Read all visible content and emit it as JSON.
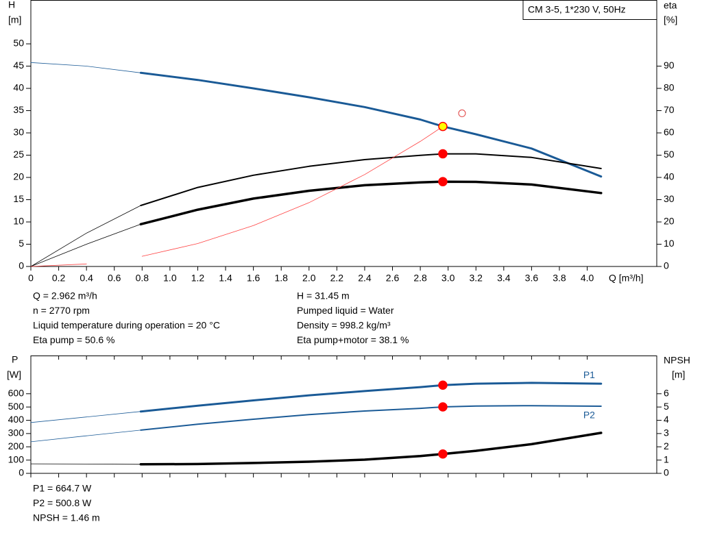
{
  "chart_data": [
    {
      "type": "line",
      "title": "CM 3-5, 1*230 V, 50Hz",
      "x_label": "Q [m³/h]",
      "y_label": "H",
      "y_unit": "[m]",
      "y2_label": "eta",
      "y2_unit": "[%]",
      "xlim": [
        0,
        4.5
      ],
      "xticks": [
        0,
        0.2,
        0.4,
        0.6,
        0.8,
        {
          "value": 1,
          "label": "1.0"
        },
        1.2,
        1.4,
        1.6,
        1.8,
        {
          "value": 2,
          "label": "2.0"
        },
        2.2,
        2.4,
        2.6,
        2.8,
        {
          "value": 3,
          "label": "3.0"
        },
        3.2,
        3.4,
        3.6,
        3.8,
        {
          "value": 4,
          "label": "4.0"
        }
      ],
      "ylim": [
        0,
        59.85
      ],
      "yticks": [
        0,
        5,
        10,
        15,
        20,
        25,
        30,
        35,
        40,
        45,
        50
      ],
      "y2lim": [
        0,
        119.7
      ],
      "y2ticks": [
        0,
        10,
        20,
        30,
        40,
        50,
        60,
        70,
        80,
        90
      ],
      "thick_from": 0.79,
      "series": [
        {
          "color": "#1a5a96",
          "width": 3,
          "x": [
            0,
            0.4,
            0.79,
            1.2,
            1.6,
            2.0,
            2.4,
            2.8,
            2.962,
            3.2,
            3.6,
            4.1
          ],
          "values": [
            45.8,
            45.0,
            43.5,
            41.9,
            40.0,
            38.0,
            35.8,
            33.0,
            31.45,
            29.7,
            26.5,
            20.2
          ]
        },
        {
          "color": "#000000",
          "width": 2,
          "axis": "y2",
          "x": [
            0,
            0.4,
            0.79,
            1.2,
            1.6,
            2.0,
            2.4,
            2.8,
            2.962,
            3.2,
            3.6,
            4.1
          ],
          "values": [
            0,
            15,
            27.4,
            35.5,
            41,
            45,
            48,
            49.9,
            50.6,
            50.6,
            49,
            44
          ]
        },
        {
          "color": "#000000",
          "width": 3.5,
          "axis": "y2",
          "x": [
            0,
            0.4,
            0.79,
            1.2,
            1.6,
            2.0,
            2.4,
            2.8,
            2.962,
            3.2,
            3.6,
            4.1
          ],
          "values": [
            0,
            10,
            19,
            25.5,
            30.5,
            34,
            36.5,
            37.8,
            38.1,
            38,
            36.8,
            33
          ]
        },
        {
          "color": "#ff4040",
          "width": 0.8,
          "x": [
            0,
            0.4,
            0.8,
            1.2,
            1.6,
            2.0,
            2.4,
            2.8,
            2.962
          ],
          "values": [
            0,
            0.57,
            2.29,
            5.16,
            9.18,
            14.34,
            20.65,
            28.1,
            31.45
          ]
        }
      ],
      "points": [
        {
          "x": 2.962,
          "y": 50.6,
          "axis": "y2",
          "color": "#ff0000"
        },
        {
          "x": 2.962,
          "y": 38.1,
          "axis": "y2",
          "color": "#ff0000"
        },
        {
          "x": 2.962,
          "y": 31.45,
          "color": "#ffff00"
        }
      ],
      "markers": [
        {
          "x": 3.1,
          "y": 34.4,
          "color": "#e04040"
        }
      ],
      "readout": [
        [
          "Q = 2.962 m³/h",
          "n = 2770 rpm",
          "Liquid temperature during operation = 20 °C",
          "Eta pump = 50.6 %"
        ],
        [
          "H = 31.45 m",
          "Pumped liquid = Water",
          "Density = 998.2 kg/m³",
          "Eta pump+motor = 38.1 %"
        ]
      ]
    },
    {
      "type": "line",
      "y_label": "P",
      "y_unit": "[W]",
      "y2_label": "NPSH",
      "y2_unit": "[m]",
      "xlim": [
        0,
        4.5
      ],
      "ylim": [
        0,
        888
      ],
      "yticks": [
        0,
        100,
        200,
        300,
        400,
        500,
        600
      ],
      "y2lim": [
        0,
        8.88
      ],
      "y2ticks": [
        0,
        1,
        2,
        3,
        4,
        5,
        6
      ],
      "thick_from": 0.79,
      "series": [
        {
          "name": "P1",
          "color": "#1a5a96",
          "width": 3,
          "x": [
            0,
            0.4,
            0.79,
            1.2,
            1.6,
            2.0,
            2.4,
            2.8,
            2.962,
            3.2,
            3.6,
            4.1
          ],
          "values": [
            383,
            425,
            466,
            510,
            550,
            588,
            620,
            650,
            664.7,
            676,
            682,
            676
          ]
        },
        {
          "name": "P2",
          "color": "#1a5a96",
          "width": 2,
          "x": [
            0,
            0.4,
            0.79,
            1.2,
            1.6,
            2.0,
            2.4,
            2.8,
            2.962,
            3.2,
            3.6,
            4.1
          ],
          "values": [
            238,
            283,
            326,
            370,
            408,
            443,
            470,
            490,
            500.8,
            507,
            510,
            506
          ]
        },
        {
          "color": "#000000",
          "width": 3.5,
          "axis": "y2",
          "x": [
            0,
            0.4,
            0.79,
            1.2,
            1.6,
            2.0,
            2.4,
            2.8,
            2.962,
            3.2,
            3.6,
            4.1
          ],
          "values": [
            0.72,
            0.7,
            0.68,
            0.7,
            0.78,
            0.88,
            1.03,
            1.3,
            1.46,
            1.7,
            2.2,
            3.05
          ]
        }
      ],
      "points": [
        {
          "x": 2.962,
          "y": 664.7,
          "color": "#ff0000"
        },
        {
          "x": 2.962,
          "y": 500.8,
          "color": "#ff0000"
        },
        {
          "x": 2.962,
          "y": 1.46,
          "axis": "y2",
          "color": "#ff0000"
        }
      ],
      "readout": [
        [
          "P1 = 664.7 W",
          "P2 = 500.8 W",
          "NPSH = 1.46 m"
        ]
      ]
    }
  ]
}
